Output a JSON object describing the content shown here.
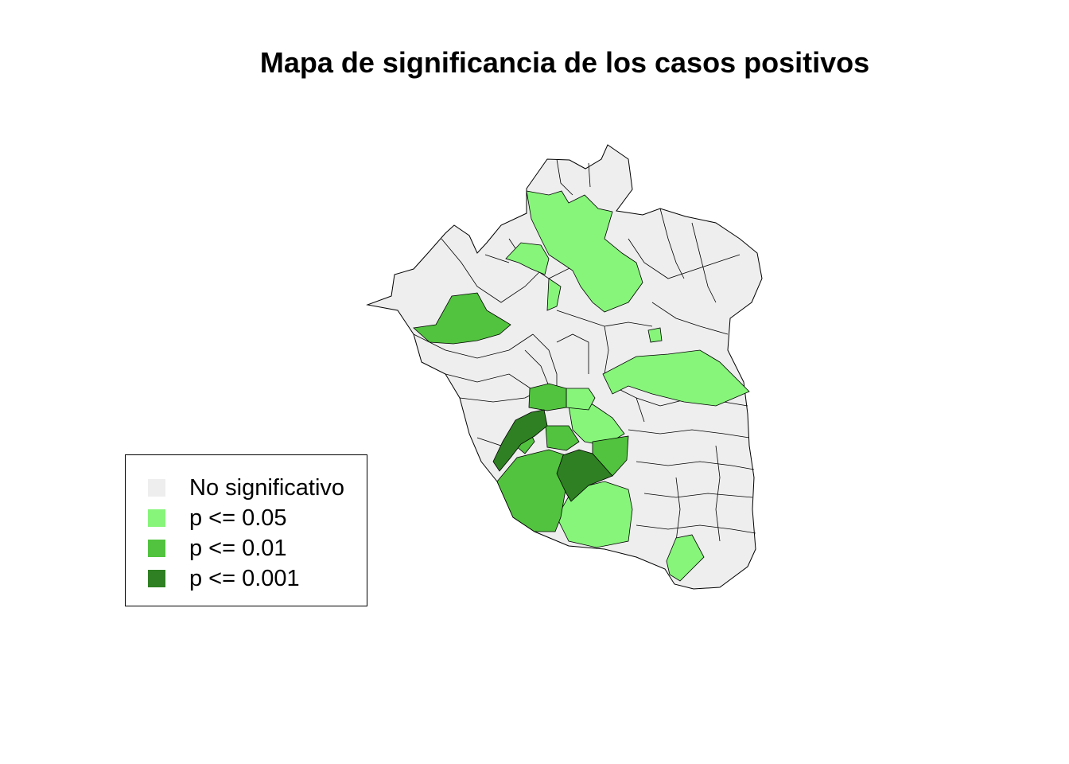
{
  "title": "Mapa de significancia de los casos positivos",
  "legend": {
    "items": [
      {
        "label": "No significativo",
        "color": "#eeeeee"
      },
      {
        "label": "p <= 0.05",
        "color": "#86f57a"
      },
      {
        "label": "p <= 0.01",
        "color": "#52c33f"
      },
      {
        "label": "p <= 0.001",
        "color": "#2f7f23"
      }
    ]
  },
  "map": {
    "border_color": "#000000",
    "significant_regions": {
      "p005": "p <= 0.05",
      "p001": "p <= 0.01",
      "p0001": "p <= 0.001"
    }
  }
}
